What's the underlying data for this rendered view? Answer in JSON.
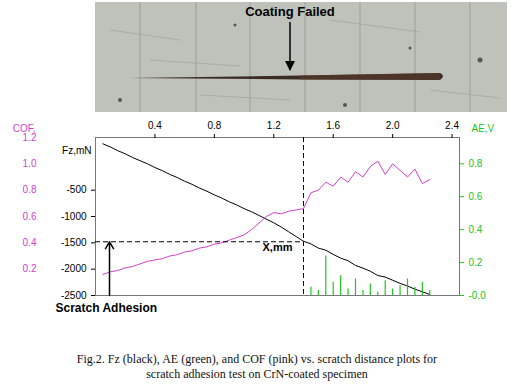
{
  "chart_data": {
    "type": "line",
    "caption": "Fig.2. Fz (black), AE (green), and COF (pink) vs. scratch distance plots for scratch adhesion test on CrN-coated specimen",
    "x_label": "X,mm",
    "xlim": [
      0,
      2.45
    ],
    "xticks": [
      0.4,
      0.8,
      1.2,
      1.6,
      {
        "value": 2,
        "label": "2.0"
      },
      2.4
    ],
    "y_label": "Fz,mN",
    "ylim": [
      -2500,
      500
    ],
    "yticks": [
      -500,
      -1000,
      -1500,
      -2000,
      -2500
    ],
    "y2_label": "COF,",
    "y2lim": [
      0,
      1.2
    ],
    "y2ticks": [
      1.2,
      {
        "value": 1,
        "label": "1.0"
      },
      0.8,
      0.6,
      0.4,
      0.2
    ],
    "y3_label": "AE,V",
    "y3lim": [
      0,
      0.96
    ],
    "y3ticks": [
      0.8,
      0.6,
      0.4,
      0.2,
      {
        "value": 0,
        "label": "-0.0"
      }
    ],
    "x": [
      0.05,
      0.1,
      0.15,
      0.2,
      0.25,
      0.3,
      0.35,
      0.4,
      0.45,
      0.5,
      0.55,
      0.6,
      0.65,
      0.7,
      0.75,
      0.8,
      0.85,
      0.9,
      0.95,
      1.0,
      1.05,
      1.1,
      1.15,
      1.2,
      1.25,
      1.3,
      1.35,
      1.4,
      1.45,
      1.5,
      1.55,
      1.6,
      1.65,
      1.7,
      1.75,
      1.8,
      1.85,
      1.9,
      1.95,
      2.0,
      2.05,
      2.1,
      2.15,
      2.2,
      2.25
    ],
    "series": [
      {
        "name": "Fz",
        "axis": "y",
        "type": "line",
        "color": "#000000",
        "values": [
          380,
          320,
          250,
          190,
          120,
          60,
          0,
          -70,
          -130,
          -200,
          -260,
          -330,
          -390,
          -460,
          -520,
          -590,
          -650,
          -720,
          -780,
          -850,
          -910,
          -980,
          -1050,
          -1120,
          -1200,
          -1290,
          -1380,
          -1470,
          -1520,
          -1600,
          -1640,
          -1720,
          -1790,
          -1840,
          -1930,
          -1980,
          -2040,
          -2120,
          -2150,
          -2210,
          -2270,
          -2320,
          -2380,
          -2430,
          -2480
        ]
      },
      {
        "name": "AE",
        "axis": "y3",
        "type": "stem",
        "color": "#22c322",
        "values": [
          0,
          0,
          0,
          0,
          0,
          0,
          0,
          0,
          0,
          0,
          0,
          0,
          0,
          0,
          0,
          0,
          0,
          0,
          0,
          0,
          0,
          0,
          0,
          0,
          0,
          0,
          0,
          0,
          0.05,
          0.03,
          0.24,
          0.08,
          0.12,
          0.04,
          0.1,
          0.03,
          0.07,
          0.02,
          0.09,
          0.04,
          0.06,
          0.1,
          0.05,
          0.08,
          0.03
        ]
      },
      {
        "name": "COF",
        "axis": "y2",
        "type": "line",
        "color": "#d23fcf",
        "values": [
          0.16,
          0.18,
          0.19,
          0.21,
          0.22,
          0.24,
          0.26,
          0.27,
          0.28,
          0.3,
          0.31,
          0.33,
          0.34,
          0.36,
          0.37,
          0.39,
          0.4,
          0.42,
          0.44,
          0.46,
          0.5,
          0.55,
          0.6,
          0.63,
          0.62,
          0.64,
          0.65,
          0.66,
          0.78,
          0.8,
          0.86,
          0.83,
          0.9,
          0.86,
          0.94,
          0.9,
          0.98,
          1.02,
          0.92,
          1.0,
          0.95,
          0.9,
          0.96,
          0.85,
          0.88
        ]
      }
    ],
    "critical_point": {
      "x": 1.4,
      "y": -1480,
      "axis": "y"
    },
    "annotations": [
      {
        "text": "Coating Failed"
      },
      {
        "text": "Scratch Adhesion"
      }
    ]
  }
}
